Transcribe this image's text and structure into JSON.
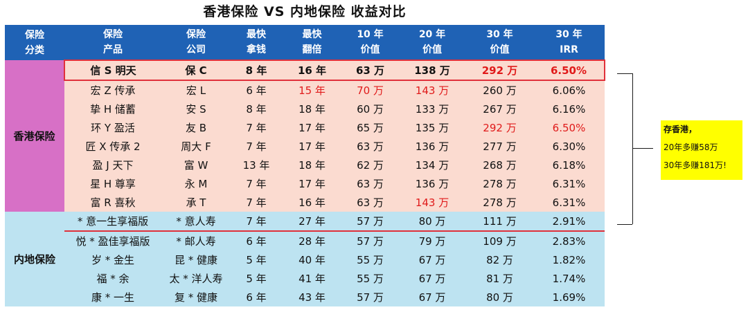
{
  "title": "香港保险 VS 内地保险    收益对比",
  "chart_data": {
    "type": "table",
    "headers": [
      [
        "保险",
        "分类"
      ],
      [
        "保险",
        "产品"
      ],
      [
        "保险",
        "公司"
      ],
      [
        "最快",
        "拿钱"
      ],
      [
        "最快",
        "翻倍"
      ],
      [
        "10 年",
        "价值"
      ],
      [
        "20 年",
        "价值"
      ],
      [
        "30 年",
        "价值"
      ],
      [
        "30 年",
        "IRR"
      ]
    ],
    "groups": [
      {
        "category": "香港保险",
        "rows": [
          [
            "信 S 明天",
            "保 C",
            "8 年",
            "16 年",
            "63 万",
            "138 万",
            "292 万",
            "6.50%"
          ],
          [
            "宏 Z 传承",
            "宏 L",
            "6 年",
            "15 年",
            "70 万",
            "143 万",
            "260 万",
            "6.06%"
          ],
          [
            "挚 H 储蓄",
            "安 S",
            "8 年",
            "18 年",
            "60 万",
            "133 万",
            "267 万",
            "6.16%"
          ],
          [
            "环 Y 盈活",
            "友 B",
            "7 年",
            "17 年",
            "65 万",
            "135 万",
            "292 万",
            "6.50%"
          ],
          [
            "匠 X 传承 2",
            "周大 F",
            "7 年",
            "17 年",
            "63 万",
            "136 万",
            "277 万",
            "6.30%"
          ],
          [
            "盈 J 天下",
            "富 W",
            "13 年",
            "18 年",
            "62 万",
            "134 万",
            "268 万",
            "6.18%"
          ],
          [
            "星 H 尊享",
            "永 M",
            "7 年",
            "17 年",
            "63 万",
            "136 万",
            "278 万",
            "6.31%"
          ],
          [
            "富 R 喜秋",
            "承 T",
            "7 年",
            "16 年",
            "63 万",
            "143 万",
            "278 万",
            "6.31%"
          ]
        ]
      },
      {
        "category": "内地保险",
        "rows": [
          [
            "* 意一生享福版",
            "* 意人寿",
            "7 年",
            "27 年",
            "57 万",
            "80 万",
            "111 万",
            "2.91%"
          ],
          [
            "悦 * 盈佳享福版",
            "* 邮人寿",
            "6 年",
            "28 年",
            "57 万",
            "79 万",
            "109 万",
            "2.83%"
          ],
          [
            "岁 * 金生",
            "昆 * 健康",
            "5 年",
            "40 年",
            "55 万",
            "67 万",
            "82 万",
            "1.82%"
          ],
          [
            "福 * 余",
            "太 * 洋人寿",
            "5 年",
            "41 年",
            "55 万",
            "67 万",
            "81 万",
            "1.74%"
          ],
          [
            "康 * 一生",
            "复 * 健康",
            "6 年",
            "43 年",
            "57 万",
            "67 万",
            "80 万",
            "1.69%"
          ]
        ]
      }
    ],
    "red_cells": [
      [
        0,
        0,
        6
      ],
      [
        0,
        0,
        7
      ],
      [
        0,
        1,
        3
      ],
      [
        0,
        1,
        4
      ],
      [
        0,
        1,
        5
      ],
      [
        0,
        3,
        6
      ],
      [
        0,
        3,
        7
      ],
      [
        0,
        7,
        5
      ]
    ]
  },
  "note": {
    "heading": "存香港，",
    "line1": "20年多赚58万",
    "line2": "30年多赚181万!"
  },
  "colors": {
    "header_bg": "#1f62b5",
    "hk_category_bg": "#d770c6",
    "hk_row_bg": "#fbdbd0",
    "cn_row_bg": "#bde3f1",
    "highlight_red": "#e01a1a",
    "note_bg": "#ffff00"
  }
}
